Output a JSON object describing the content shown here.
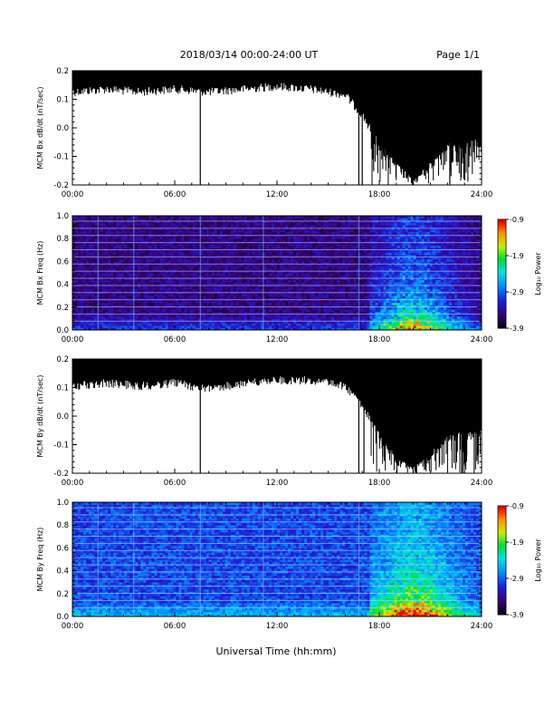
{
  "header": {
    "title": "2018/03/14  00:00-24:00 UT",
    "page": "Page 1/1"
  },
  "x_axis_title": "Universal Time (hh:mm)",
  "colorbar": {
    "label": "Log₁₀ Power",
    "ticks": [
      -0.9,
      -1.9,
      -2.9,
      -3.9
    ],
    "tick_labels": [
      "-0.9",
      "-1.9",
      "-2.9",
      "-3.9"
    ],
    "range": [
      -3.9,
      -0.9
    ]
  },
  "chart_data": [
    {
      "type": "line",
      "ylabel": "MCM Bx dB/dt (nT/sec)",
      "xlim": [
        0,
        24
      ],
      "ylim": [
        -0.2,
        0.2
      ],
      "x_ticks": [
        0,
        6,
        12,
        18,
        24
      ],
      "x_tick_labels": [
        "00:00",
        "06:00",
        "12:00",
        "18:00",
        "24:00"
      ],
      "y_ticks": [
        -0.2,
        -0.1,
        0.0,
        0.1,
        0.2
      ],
      "y_tick_labels": [
        "-0.2",
        "-0.1",
        "0.0",
        "0.1",
        "0.2"
      ],
      "baseline_profile": {
        "hours": [
          0,
          2,
          4,
          6,
          8,
          10,
          12,
          14,
          16,
          17,
          18,
          19,
          20,
          21,
          22,
          24
        ],
        "upper": [
          0.2,
          0.2,
          0.2,
          0.2,
          0.2,
          0.2,
          0.2,
          0.2,
          0.2,
          0.2,
          0.2,
          0.2,
          0.2,
          0.2,
          0.2,
          0.2
        ],
        "lower": [
          0.14,
          0.15,
          0.14,
          0.15,
          0.14,
          0.15,
          0.16,
          0.15,
          0.13,
          0.06,
          -0.05,
          -0.12,
          -0.18,
          -0.12,
          -0.05,
          -0.04
        ]
      },
      "spikes": [
        {
          "hour": 7.5,
          "min": -0.2
        },
        {
          "hour": 16.8,
          "min": -0.2
        },
        {
          "hour": 17.0,
          "min": -0.2
        }
      ]
    },
    {
      "type": "heatmap",
      "ylabel": "MCM Bx Freq (Hz)",
      "xlim": [
        0,
        24
      ],
      "ylim": [
        0,
        1.0
      ],
      "x_ticks": [
        0,
        6,
        12,
        18,
        24
      ],
      "x_tick_labels": [
        "00:00",
        "06:00",
        "12:00",
        "18:00",
        "24:00"
      ],
      "y_ticks": [
        0.0,
        0.2,
        0.4,
        0.6,
        0.8,
        1.0
      ],
      "y_tick_labels": [
        "0.0",
        "0.2",
        "0.4",
        "0.6",
        "0.8",
        "1.0"
      ],
      "colorscale": "log10 power, -3.9 to -0.9",
      "background_level": -3.5,
      "activity_hours": [
        17.5,
        24
      ],
      "activity_peak_hour": 20.0
    },
    {
      "type": "line",
      "ylabel": "MCM By dB/dt (nT/sec)",
      "xlim": [
        0,
        24
      ],
      "ylim": [
        -0.2,
        0.2
      ],
      "x_ticks": [
        0,
        6,
        12,
        18,
        24
      ],
      "x_tick_labels": [
        "00:00",
        "06:00",
        "12:00",
        "18:00",
        "24:00"
      ],
      "y_ticks": [
        -0.2,
        -0.1,
        0.0,
        0.1,
        0.2
      ],
      "y_tick_labels": [
        "-0.2",
        "-0.1",
        "0.0",
        "0.1",
        "0.2"
      ],
      "baseline_profile": {
        "hours": [
          0,
          2,
          4,
          6,
          8,
          10,
          12,
          14,
          16,
          17,
          18,
          19,
          20,
          21,
          22,
          24
        ],
        "upper": [
          0.2,
          0.2,
          0.2,
          0.2,
          0.2,
          0.2,
          0.2,
          0.2,
          0.2,
          0.2,
          0.2,
          0.2,
          0.2,
          0.2,
          0.2,
          0.2
        ],
        "lower": [
          0.12,
          0.13,
          0.12,
          0.13,
          0.11,
          0.13,
          0.14,
          0.14,
          0.12,
          0.05,
          -0.06,
          -0.14,
          -0.18,
          -0.13,
          -0.06,
          -0.05
        ]
      },
      "spikes": [
        {
          "hour": 7.5,
          "min": -0.2
        },
        {
          "hour": 16.8,
          "min": -0.2
        },
        {
          "hour": 17.1,
          "min": -0.2
        }
      ]
    },
    {
      "type": "heatmap",
      "ylabel": "MCM By Freq (Hz)",
      "xlim": [
        0,
        24
      ],
      "ylim": [
        0,
        1.0
      ],
      "x_ticks": [
        0,
        6,
        12,
        18,
        24
      ],
      "x_tick_labels": [
        "00:00",
        "06:00",
        "12:00",
        "18:00",
        "24:00"
      ],
      "y_ticks": [
        0.0,
        0.2,
        0.4,
        0.6,
        0.8,
        1.0
      ],
      "y_tick_labels": [
        "0.0",
        "0.2",
        "0.4",
        "0.6",
        "0.8",
        "1.0"
      ],
      "colorscale": "log10 power, -3.9 to -0.9",
      "background_level": -3.0,
      "activity_hours": [
        17.5,
        24
      ],
      "activity_peak_hour": 20.0
    }
  ]
}
